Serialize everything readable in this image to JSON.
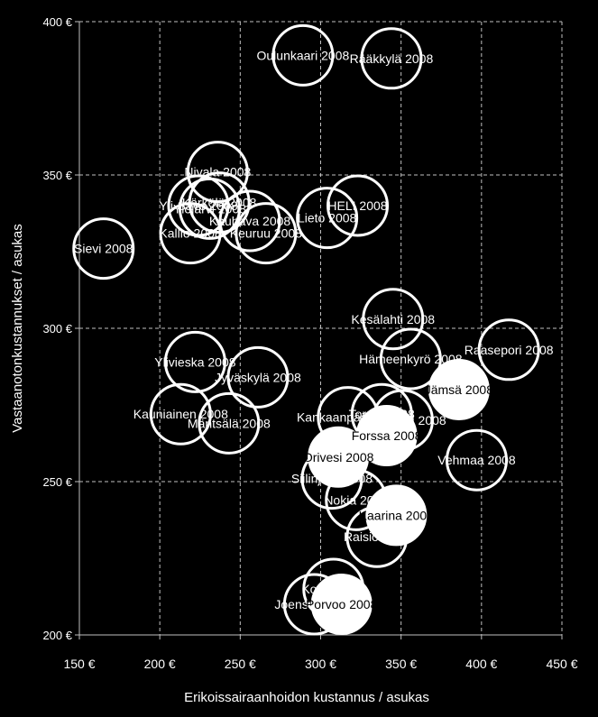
{
  "chart_data": {
    "type": "scatter",
    "title": "",
    "xlabel": "Erikoissairaanhoidon kustannus / asukas",
    "ylabel": "Vastaanotonkustannukset / asukas",
    "xlim": [
      150,
      450
    ],
    "ylim": [
      200,
      400
    ],
    "xticks": [
      150,
      200,
      250,
      300,
      350,
      400,
      450
    ],
    "yticks": [
      200,
      250,
      300,
      350,
      400
    ],
    "x_tick_labels": [
      "150 €",
      "200 €",
      "250 €",
      "300 €",
      "350 €",
      "400 €",
      "450 €"
    ],
    "y_tick_labels": [
      "200 €",
      "250 €",
      "300 €",
      "350 €",
      "400 €"
    ],
    "grid": true,
    "colors": {
      "background": "#000000",
      "marker_outline": "#ffffff",
      "highlight_fill": "#ffffff",
      "text": "#ffffff",
      "grid": "#bfbfbf"
    },
    "points": [
      {
        "x": 289,
        "y": 389,
        "label": "Oulunkaari 2008",
        "highlight": false
      },
      {
        "x": 344,
        "y": 388,
        "label": "Rääkkylä 2008",
        "highlight": false
      },
      {
        "x": 236,
        "y": 351,
        "label": "Nivala 2008",
        "highlight": false
      },
      {
        "x": 165,
        "y": 326,
        "label": "Sievi 2008",
        "highlight": false
      },
      {
        "x": 224,
        "y": 340,
        "label": "Yli-Savo 2008",
        "highlight": false
      },
      {
        "x": 231,
        "y": 339,
        "label": "Ylöjärvi 2008",
        "highlight": false
      },
      {
        "x": 237,
        "y": 341,
        "label": "Kärkölä 2008",
        "highlight": false
      },
      {
        "x": 219,
        "y": 331,
        "label": "Kallio 2008",
        "highlight": false
      },
      {
        "x": 256,
        "y": 335,
        "label": "Kauhava 2008",
        "highlight": false
      },
      {
        "x": 266,
        "y": 331,
        "label": "Keuruu 2008",
        "highlight": false
      },
      {
        "x": 304,
        "y": 336,
        "label": "Lieto 2008",
        "highlight": false
      },
      {
        "x": 323,
        "y": 340,
        "label": "HELI 2008",
        "highlight": false
      },
      {
        "x": 345,
        "y": 303,
        "label": "Kesälahti 2008",
        "highlight": false
      },
      {
        "x": 417,
        "y": 293,
        "label": "Raasepori 2008",
        "highlight": false
      },
      {
        "x": 356,
        "y": 290,
        "label": "Hämeenkyrö 2008",
        "highlight": false
      },
      {
        "x": 222,
        "y": 289,
        "label": "Ylivieska 2008",
        "highlight": false
      },
      {
        "x": 261,
        "y": 284,
        "label": "Jyväskylä 2008",
        "highlight": false
      },
      {
        "x": 386,
        "y": 280,
        "label": "Jämsä 2008",
        "highlight": true
      },
      {
        "x": 213,
        "y": 272,
        "label": "Kauniainen 2008",
        "highlight": false
      },
      {
        "x": 243,
        "y": 269,
        "label": "Mäntsälä 2008",
        "highlight": false
      },
      {
        "x": 317,
        "y": 271,
        "label": "Kankaanpää 2008",
        "highlight": false
      },
      {
        "x": 338,
        "y": 272,
        "label": "Tornio 2008",
        "highlight": false
      },
      {
        "x": 351,
        "y": 270,
        "label": "Kauhajoki 2008",
        "highlight": false
      },
      {
        "x": 341,
        "y": 265,
        "label": "Forssa 2008",
        "highlight": true
      },
      {
        "x": 397,
        "y": 257,
        "label": "Vehmaa 2008",
        "highlight": false
      },
      {
        "x": 311,
        "y": 258,
        "label": "Orivesi 2008",
        "highlight": true
      },
      {
        "x": 307,
        "y": 251,
        "label": "Siilinjärvi 2008",
        "highlight": false
      },
      {
        "x": 322,
        "y": 244,
        "label": "Nokia 2008",
        "highlight": false
      },
      {
        "x": 347,
        "y": 239,
        "label": "Kaarina 2008",
        "highlight": true
      },
      {
        "x": 335,
        "y": 232,
        "label": "Raisio 2008",
        "highlight": false
      },
      {
        "x": 308,
        "y": 215,
        "label": "Kotka 2008",
        "highlight": false
      },
      {
        "x": 296,
        "y": 210,
        "label": "Joensuu 2008",
        "highlight": false
      },
      {
        "x": 313,
        "y": 210,
        "label": "Porvoo 2008",
        "highlight": true
      }
    ]
  }
}
